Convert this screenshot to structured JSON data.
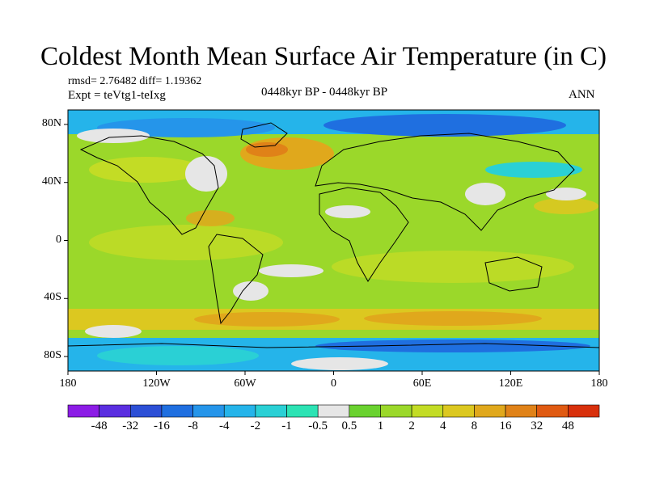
{
  "title": "Coldest Month Mean Surface Air Temperature (in C)",
  "stats_text": "rmsd= 2.76482 diff= 1.19362",
  "experiment_text": "Expt = teVtg1-teIxg",
  "period_text": "0448kyr BP - 0448kyr BP",
  "season_text": "ANN",
  "y_ticks": [
    {
      "label": "80N",
      "lat": 80
    },
    {
      "label": "40N",
      "lat": 40
    },
    {
      "label": "0",
      "lat": 0
    },
    {
      "label": "40S",
      "lat": -40
    },
    {
      "label": "80S",
      "lat": -80
    }
  ],
  "x_ticks": [
    {
      "label": "180",
      "lon": -180
    },
    {
      "label": "120W",
      "lon": -120
    },
    {
      "label": "60W",
      "lon": -60
    },
    {
      "label": "0",
      "lon": 0
    },
    {
      "label": "60E",
      "lon": 60
    },
    {
      "label": "120E",
      "lon": 120
    },
    {
      "label": "180",
      "lon": 180
    }
  ],
  "colorbar": {
    "colors": [
      "#8c1ce6",
      "#5a2ee0",
      "#2c4fd6",
      "#1f6fe0",
      "#2595ea",
      "#25b4ea",
      "#2ad0d5",
      "#2ce3b4",
      "#e6e6e6",
      "#6ad22f",
      "#9bd82a",
      "#c3dc25",
      "#dcc820",
      "#e0a81c",
      "#e08218",
      "#e05a12",
      "#d8300c"
    ],
    "labels": [
      "-48",
      "-32",
      "-16",
      "-8",
      "-4",
      "-2",
      "-1",
      "-0.5",
      "0.5",
      "1",
      "2",
      "4",
      "8",
      "16",
      "32",
      "48"
    ]
  },
  "map": {
    "lon_range": [
      -180,
      180
    ],
    "lat_range": [
      -90,
      90
    ],
    "ocean_color": "#9bd82a",
    "cold_band_color": "#25b4ea",
    "warm_color": "#e0a81c",
    "neutral_color": "#e6e6e6"
  }
}
